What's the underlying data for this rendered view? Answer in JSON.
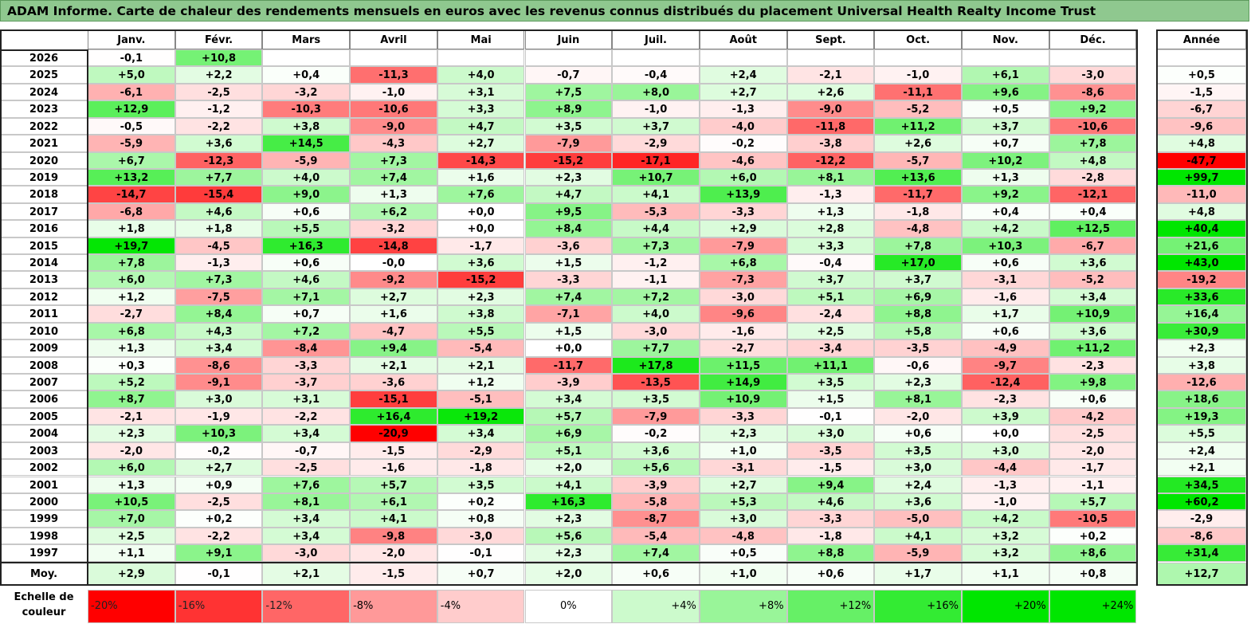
{
  "title": "ADAM Informe. Carte de chaleur des rendements mensuels en euros avec les revenus connus distribués du placement Universal Health Realty Income Trust",
  "chart_data": {
    "type": "heatmap",
    "months": [
      "Janv.",
      "Févr.",
      "Mars",
      "Avril",
      "Mai",
      "Juin",
      "Juil.",
      "Août",
      "Sept.",
      "Oct.",
      "Nov.",
      "Déc."
    ],
    "year_header": "Année",
    "rows": [
      {
        "year": "2026",
        "months": [
          "-0,1",
          "+10,8",
          "",
          "",
          "",
          "",
          "",
          "",
          "",
          "",
          "",
          ""
        ],
        "annual": ""
      },
      {
        "year": "2025",
        "months": [
          "+5,0",
          "+2,2",
          "+0,4",
          "-11,3",
          "+4,0",
          "-0,7",
          "-0,4",
          "+2,4",
          "-2,1",
          "-1,0",
          "+6,1",
          "-3,0"
        ],
        "annual": "+0,5"
      },
      {
        "year": "2024",
        "months": [
          "-6,1",
          "-2,5",
          "-3,2",
          "-1,0",
          "+3,1",
          "+7,5",
          "+8,0",
          "+2,7",
          "+2,6",
          "-11,1",
          "+9,6",
          "-8,6"
        ],
        "annual": "-1,5"
      },
      {
        "year": "2023",
        "months": [
          "+12,9",
          "-1,2",
          "-10,3",
          "-10,6",
          "+3,3",
          "+8,9",
          "-1,0",
          "-1,3",
          "-9,0",
          "-5,2",
          "+0,5",
          "+9,2"
        ],
        "annual": "-6,7"
      },
      {
        "year": "2022",
        "months": [
          "-0,5",
          "-2,2",
          "+3,8",
          "-9,0",
          "+4,7",
          "+3,5",
          "+3,7",
          "-4,0",
          "-11,8",
          "+11,2",
          "+3,7",
          "-10,6"
        ],
        "annual": "-9,6"
      },
      {
        "year": "2021",
        "months": [
          "-5,9",
          "+3,6",
          "+14,5",
          "-4,3",
          "+2,7",
          "-7,9",
          "-2,9",
          "-0,2",
          "-3,8",
          "+2,6",
          "+0,7",
          "+7,8"
        ],
        "annual": "+4,8"
      },
      {
        "year": "2020",
        "months": [
          "+6,7",
          "-12,3",
          "-5,9",
          "+7,3",
          "-14,3",
          "-15,2",
          "-17,1",
          "-4,6",
          "-12,2",
          "-5,7",
          "+10,2",
          "+4,8"
        ],
        "annual": "-47,7"
      },
      {
        "year": "2019",
        "months": [
          "+13,2",
          "+7,7",
          "+4,0",
          "+7,4",
          "+1,6",
          "+2,3",
          "+10,7",
          "+6,0",
          "+8,1",
          "+13,6",
          "+1,3",
          "-2,8"
        ],
        "annual": "+99,7"
      },
      {
        "year": "2018",
        "months": [
          "-14,7",
          "-15,4",
          "+9,0",
          "+1,3",
          "+7,6",
          "+4,7",
          "+4,1",
          "+13,9",
          "-1,3",
          "-11,7",
          "+9,2",
          "-12,1"
        ],
        "annual": "-11,0"
      },
      {
        "year": "2017",
        "months": [
          "-6,8",
          "+4,6",
          "+0,6",
          "+6,2",
          "+0,0",
          "+9,5",
          "-5,3",
          "-3,3",
          "+1,3",
          "-1,8",
          "+0,4",
          "+0,4"
        ],
        "annual": "+4,8"
      },
      {
        "year": "2016",
        "months": [
          "+1,8",
          "+1,8",
          "+5,5",
          "-3,2",
          "+0,0",
          "+8,4",
          "+4,4",
          "+2,9",
          "+2,8",
          "-4,8",
          "+4,2",
          "+12,5"
        ],
        "annual": "+40,4"
      },
      {
        "year": "2015",
        "months": [
          "+19,7",
          "-4,5",
          "+16,3",
          "-14,8",
          "-1,7",
          "-3,6",
          "+7,3",
          "-7,9",
          "+3,3",
          "+7,8",
          "+10,3",
          "-6,7"
        ],
        "annual": "+21,6"
      },
      {
        "year": "2014",
        "months": [
          "+7,8",
          "-1,3",
          "+0,6",
          "-0,0",
          "+3,6",
          "+1,5",
          "-1,2",
          "+6,8",
          "-0,4",
          "+17,0",
          "+0,6",
          "+3,6"
        ],
        "annual": "+43,0"
      },
      {
        "year": "2013",
        "months": [
          "+6,0",
          "+7,3",
          "+4,6",
          "-9,2",
          "-15,2",
          "-3,3",
          "-1,1",
          "-7,3",
          "+3,7",
          "+3,7",
          "-3,1",
          "-5,2"
        ],
        "annual": "-19,2"
      },
      {
        "year": "2012",
        "months": [
          "+1,2",
          "-7,5",
          "+7,1",
          "+2,7",
          "+2,3",
          "+7,4",
          "+7,2",
          "-3,0",
          "+5,1",
          "+6,9",
          "-1,6",
          "+3,4"
        ],
        "annual": "+33,6"
      },
      {
        "year": "2011",
        "months": [
          "-2,7",
          "+8,4",
          "+0,7",
          "+1,6",
          "+3,8",
          "-7,1",
          "+4,0",
          "-9,6",
          "-2,4",
          "+8,8",
          "+1,7",
          "+10,9"
        ],
        "annual": "+16,4"
      },
      {
        "year": "2010",
        "months": [
          "+6,8",
          "+4,3",
          "+7,2",
          "-4,7",
          "+5,5",
          "+1,5",
          "-3,0",
          "-1,6",
          "+2,5",
          "+5,8",
          "+0,6",
          "+3,6"
        ],
        "annual": "+30,9"
      },
      {
        "year": "2009",
        "months": [
          "+1,3",
          "+3,4",
          "-8,4",
          "+9,4",
          "-5,4",
          "+0,0",
          "+7,7",
          "-2,7",
          "-3,4",
          "-3,5",
          "-4,9",
          "+11,2"
        ],
        "annual": "+2,3"
      },
      {
        "year": "2008",
        "months": [
          "+0,3",
          "-8,6",
          "-3,3",
          "+2,1",
          "+2,1",
          "-11,7",
          "+17,8",
          "+11,5",
          "+11,1",
          "-0,6",
          "-9,7",
          "-2,3"
        ],
        "annual": "+3,8"
      },
      {
        "year": "2007",
        "months": [
          "+5,2",
          "-9,1",
          "-3,7",
          "-3,6",
          "+1,2",
          "-3,9",
          "-13,5",
          "+14,9",
          "+3,5",
          "+2,3",
          "-12,4",
          "+9,8"
        ],
        "annual": "-12,6"
      },
      {
        "year": "2006",
        "months": [
          "+8,7",
          "+3,0",
          "+3,1",
          "-15,1",
          "-5,1",
          "+3,4",
          "+3,5",
          "+10,9",
          "+1,5",
          "+8,1",
          "-2,3",
          "+0,6"
        ],
        "annual": "+18,6"
      },
      {
        "year": "2005",
        "months": [
          "-2,1",
          "-1,9",
          "-2,2",
          "+16,4",
          "+19,2",
          "+5,7",
          "-7,9",
          "-3,3",
          "-0,1",
          "-2,0",
          "+3,9",
          "-4,2"
        ],
        "annual": "+19,3"
      },
      {
        "year": "2004",
        "months": [
          "+2,3",
          "+10,3",
          "+3,4",
          "-20,9",
          "+3,4",
          "+6,9",
          "-0,2",
          "+2,3",
          "+3,0",
          "+0,6",
          "+0,0",
          "-2,5"
        ],
        "annual": "+5,5"
      },
      {
        "year": "2003",
        "months": [
          "-2,0",
          "-0,2",
          "-0,7",
          "-1,5",
          "-2,9",
          "+5,1",
          "+3,6",
          "+1,0",
          "-3,5",
          "+3,5",
          "+3,0",
          "-2,0"
        ],
        "annual": "+2,4"
      },
      {
        "year": "2002",
        "months": [
          "+6,0",
          "+2,7",
          "-2,5",
          "-1,6",
          "-1,8",
          "+2,0",
          "+5,6",
          "-3,1",
          "-1,5",
          "+3,0",
          "-4,4",
          "-1,7"
        ],
        "annual": "+2,1"
      },
      {
        "year": "2001",
        "months": [
          "+1,3",
          "+0,9",
          "+7,6",
          "+5,7",
          "+3,5",
          "+4,1",
          "-3,9",
          "+2,7",
          "+9,4",
          "+2,4",
          "-1,3",
          "-1,1"
        ],
        "annual": "+34,5"
      },
      {
        "year": "2000",
        "months": [
          "+10,5",
          "-2,5",
          "+8,1",
          "+6,1",
          "+0,2",
          "+16,3",
          "-5,8",
          "+5,3",
          "+4,6",
          "+3,6",
          "-1,0",
          "+5,7"
        ],
        "annual": "+60,2"
      },
      {
        "year": "1999",
        "months": [
          "+7,0",
          "+0,2",
          "+3,4",
          "+4,1",
          "+0,8",
          "+2,3",
          "-8,7",
          "+3,0",
          "-3,3",
          "-5,0",
          "+4,2",
          "-10,5"
        ],
        "annual": "-2,9"
      },
      {
        "year": "1998",
        "months": [
          "+2,5",
          "-2,2",
          "+3,4",
          "-9,8",
          "-3,0",
          "+5,6",
          "-5,4",
          "-4,8",
          "-1,8",
          "+4,1",
          "+3,2",
          "+0,2"
        ],
        "annual": "-8,6"
      },
      {
        "year": "1997",
        "months": [
          "+1,1",
          "+9,1",
          "-3,0",
          "-2,0",
          "-0,1",
          "+2,3",
          "+7,4",
          "+0,5",
          "+8,8",
          "-5,9",
          "+3,2",
          "+8,6"
        ],
        "annual": "+31,4"
      }
    ],
    "average": {
      "label": "Moy.",
      "months": [
        "+2,9",
        "-0,1",
        "+2,1",
        "-1,5",
        "+0,7",
        "+2,0",
        "+0,6",
        "+1,0",
        "+0,6",
        "+1,7",
        "+1,1",
        "+0,8"
      ],
      "annual": "+12,7"
    },
    "legend": {
      "label": "Echelle de couleur",
      "steps": [
        "-20%",
        "-16%",
        "-12%",
        "-8%",
        "-4%",
        "0%",
        "+4%",
        "+8%",
        "+12%",
        "+16%",
        "+20%",
        "+24%"
      ]
    }
  }
}
